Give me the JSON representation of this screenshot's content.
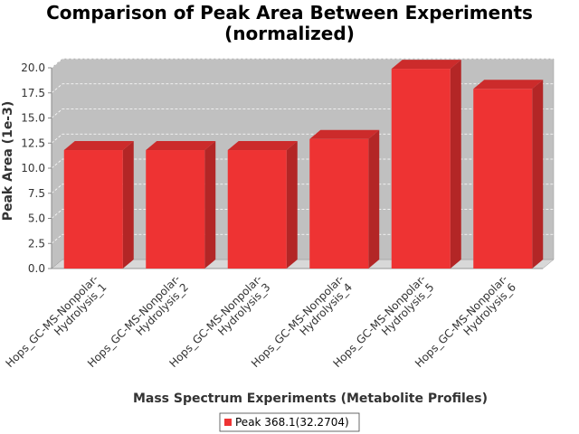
{
  "chart_data": {
    "type": "bar",
    "title": "Comparison of Peak Area Between Experiments (normalized)",
    "title_lines": [
      "Comparison of Peak Area Between Experiments",
      "(normalized)"
    ],
    "xlabel": "Mass Spectrum Experiments (Metabolite Profiles)",
    "ylabel": "Peak Area (1e-3)",
    "ylim": [
      0,
      20
    ],
    "yticks": [
      "0.0",
      "2.5",
      "5.0",
      "7.5",
      "10.0",
      "12.5",
      "15.0",
      "17.5",
      "20.0"
    ],
    "categories": [
      "Hops_GC-MS-Nonpolar-Hydrolysis_1",
      "Hops_GC-MS-Nonpolar-Hydrolysis_2",
      "Hops_GC-MS-Nonpolar-Hydrolysis_3",
      "Hops_GC-MS-Nonpolar-Hydrolysis_4",
      "Hops_GC-MS-Nonpolar-Hydrolysis_5",
      "Hops_GC-MS-Nonpolar-Hydrolysis_6"
    ],
    "category_label_lines": [
      [
        "Hops_GC-MS-Nonpolar-",
        "Hydrolysis_1"
      ],
      [
        "Hops_GC-MS-Nonpolar-",
        "Hydrolysis_2"
      ],
      [
        "Hops_GC-MS-Nonpolar-",
        "Hydrolysis_3"
      ],
      [
        "Hops_GC-MS-Nonpolar-",
        "Hydrolysis_4"
      ],
      [
        "Hops_GC-MS-Nonpolar-",
        "Hydrolysis_5"
      ],
      [
        "Hops_GC-MS-Nonpolar-",
        "Hydrolysis_6"
      ]
    ],
    "series": [
      {
        "name": "Peak 368.1(32.2704)",
        "values": [
          11.8,
          11.8,
          11.8,
          12.9,
          19.9,
          17.9
        ],
        "color": "#ee3333"
      }
    ],
    "grid": true,
    "legend_position": "bottom",
    "style": "3d-bar",
    "colors": {
      "plot_background": "#c0c0c0",
      "plot_floor": "#d8d8d8",
      "bar_front": "#ee3333",
      "bar_side": "#b32626",
      "bar_top": "#cc2b2b",
      "gridline": "#ffffff"
    }
  }
}
